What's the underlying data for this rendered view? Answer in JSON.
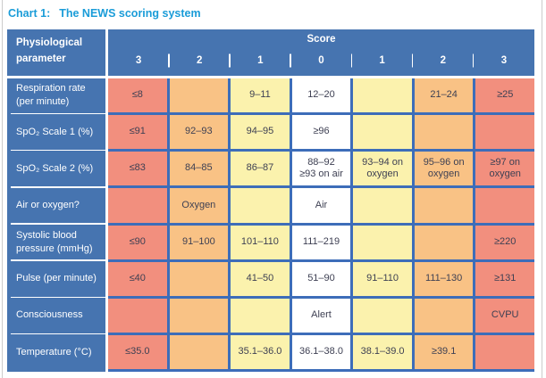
{
  "page": {
    "chart_label": "Chart 1:",
    "chart_title": "The NEWS scoring system"
  },
  "table": {
    "param_header": "Physiological parameter",
    "score_header": "Score",
    "score_cols": [
      "3",
      "2",
      "1",
      "0",
      "1",
      "2",
      "3"
    ],
    "rows": [
      {
        "label": "Respiration rate (per minute)",
        "cells": [
          {
            "text": "≤8",
            "color": "red"
          },
          {
            "text": "",
            "color": "orange"
          },
          {
            "text": "9–11",
            "color": "yellow"
          },
          {
            "text": "12–20",
            "color": "white"
          },
          {
            "text": "",
            "color": "yellow"
          },
          {
            "text": "21–24",
            "color": "orange"
          },
          {
            "text": "≥25",
            "color": "red"
          }
        ]
      },
      {
        "label": "SpO₂ Scale 1 (%)",
        "cells": [
          {
            "text": "≤91",
            "color": "red"
          },
          {
            "text": "92–93",
            "color": "orange"
          },
          {
            "text": "94–95",
            "color": "yellow"
          },
          {
            "text": "≥96",
            "color": "white"
          },
          {
            "text": "",
            "color": "yellow"
          },
          {
            "text": "",
            "color": "orange"
          },
          {
            "text": "",
            "color": "red"
          }
        ]
      },
      {
        "label": "SpO₂ Scale 2 (%)",
        "cells": [
          {
            "text": "≤83",
            "color": "red"
          },
          {
            "text": "84–85",
            "color": "orange"
          },
          {
            "text": "86–87",
            "color": "yellow"
          },
          {
            "text": "88–92\n≥93 on air",
            "color": "white"
          },
          {
            "text": "93–94 on\noxygen",
            "color": "yellow"
          },
          {
            "text": "95–96 on\noxygen",
            "color": "orange"
          },
          {
            "text": "≥97 on\noxygen",
            "color": "red"
          }
        ]
      },
      {
        "label": "Air or oxygen?",
        "cells": [
          {
            "text": "",
            "color": "red"
          },
          {
            "text": "Oxygen",
            "color": "orange"
          },
          {
            "text": "",
            "color": "yellow"
          },
          {
            "text": "Air",
            "color": "white"
          },
          {
            "text": "",
            "color": "yellow"
          },
          {
            "text": "",
            "color": "orange"
          },
          {
            "text": "",
            "color": "red"
          }
        ]
      },
      {
        "label": "Systolic blood pressure (mmHg)",
        "cells": [
          {
            "text": "≤90",
            "color": "red"
          },
          {
            "text": "91–100",
            "color": "orange"
          },
          {
            "text": "101–110",
            "color": "yellow"
          },
          {
            "text": "111–219",
            "color": "white"
          },
          {
            "text": "",
            "color": "yellow"
          },
          {
            "text": "",
            "color": "orange"
          },
          {
            "text": "≥220",
            "color": "red"
          }
        ]
      },
      {
        "label": "Pulse (per minute)",
        "cells": [
          {
            "text": "≤40",
            "color": "red"
          },
          {
            "text": "",
            "color": "orange"
          },
          {
            "text": "41–50",
            "color": "yellow"
          },
          {
            "text": "51–90",
            "color": "white"
          },
          {
            "text": "91–110",
            "color": "yellow"
          },
          {
            "text": "111–130",
            "color": "orange"
          },
          {
            "text": "≥131",
            "color": "red"
          }
        ]
      },
      {
        "label": "Consciousness",
        "cells": [
          {
            "text": "",
            "color": "red"
          },
          {
            "text": "",
            "color": "orange"
          },
          {
            "text": "",
            "color": "yellow"
          },
          {
            "text": "Alert",
            "color": "white"
          },
          {
            "text": "",
            "color": "yellow"
          },
          {
            "text": "",
            "color": "orange"
          },
          {
            "text": "CVPU",
            "color": "red"
          }
        ]
      },
      {
        "label": "Temperature (°C)",
        "cells": [
          {
            "text": "≤35.0",
            "color": "red"
          },
          {
            "text": "",
            "color": "orange"
          },
          {
            "text": "35.1–36.0",
            "color": "yellow"
          },
          {
            "text": "36.1–38.0",
            "color": "white"
          },
          {
            "text": "38.1–39.0",
            "color": "yellow"
          },
          {
            "text": "≥39.1",
            "color": "orange"
          },
          {
            "text": "",
            "color": "red"
          }
        ]
      }
    ]
  },
  "colors": {
    "title_blue": "#1a9cd8",
    "header_blue": "#4674b0",
    "grid_blue": "#3d6db9",
    "red": "#f28f7e",
    "orange": "#f9c285",
    "yellow": "#fbf2ad",
    "white": "#ffffff",
    "cell_text": "#3e4053"
  }
}
